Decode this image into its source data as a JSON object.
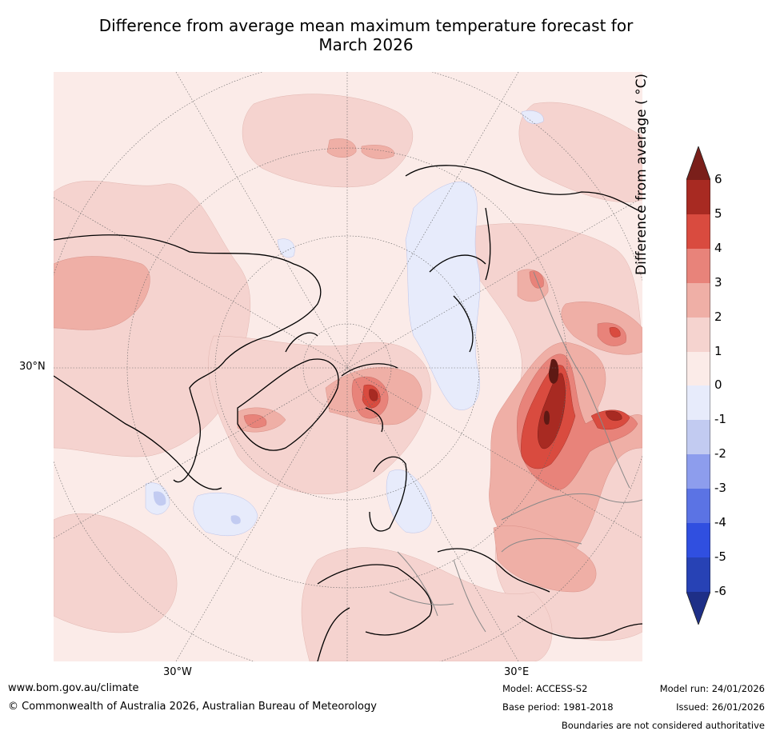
{
  "title": {
    "line1": "Difference from average mean maximum temperature forecast for",
    "line2": "March 2026"
  },
  "axes": {
    "lat_label": "30°N",
    "lon_labels": [
      "30°W",
      "30°E"
    ]
  },
  "colorbar": {
    "label": "Difference from average ( °C)",
    "ticks": [
      "6",
      "5",
      "4",
      "3",
      "2",
      "1",
      "0",
      "-1",
      "-2",
      "-3",
      "-4",
      "-5",
      "-6"
    ],
    "colors": {
      "over": "#7a1f1a",
      "5_6": "#a82a22",
      "4_5": "#d94b3f",
      "3_4": "#e8837a",
      "2_3": "#efafa6",
      "1_2": "#f5d3cf",
      "0_1": "#fbebe8",
      "m1_0": "#e7ebfb",
      "m2_m1": "#c2cbf1",
      "m3_m2": "#8d9ded",
      "m4_m3": "#5b73e4",
      "m5_m4": "#304fe0",
      "m6_m5": "#2742b5",
      "under": "#1e2f87"
    }
  },
  "footer": {
    "website": "www.bom.gov.au/climate",
    "copyright": "© Commonwealth of Australia 2026, Australian Bureau of Meteorology",
    "model": "Model: ACCESS-S2",
    "base_period": "Base period: 1981-2018",
    "model_run": "Model run: 24/01/2026",
    "issued": "Issued: 26/01/2026",
    "disclaimer": "Boundaries are not considered authoritative"
  }
}
